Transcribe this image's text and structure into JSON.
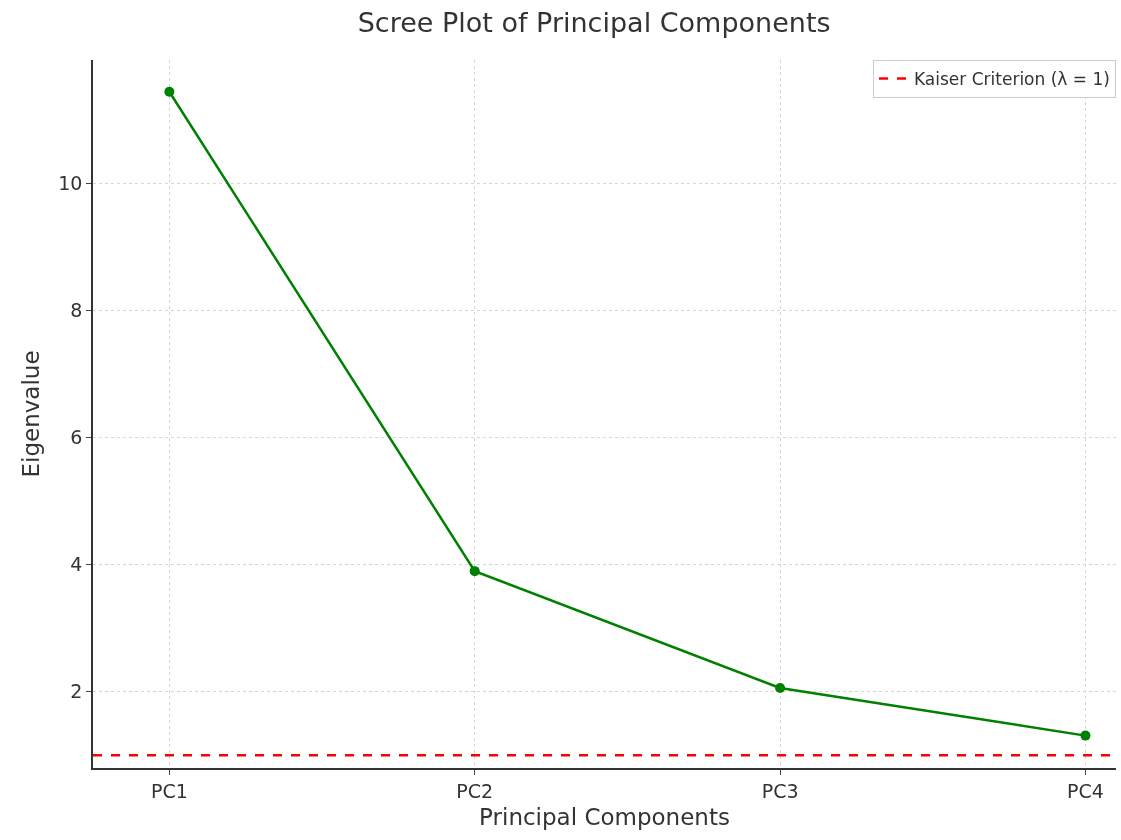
{
  "chart_data": {
    "type": "line",
    "title": "Scree Plot of Principal Components",
    "xlabel": "Principal Components",
    "ylabel": "Eigenvalue",
    "categories": [
      "PC1",
      "PC2",
      "PC3",
      "PC4"
    ],
    "series": [
      {
        "color": "#008000",
        "values": [
          11.45,
          3.9,
          2.06,
          1.31
        ]
      }
    ],
    "ylim": [
      0.8,
      11.95
    ],
    "yticks": [
      2,
      4,
      6,
      8,
      10
    ],
    "ref_lines": [
      {
        "axis": "y",
        "value": 1,
        "label": "Kaiser Criterion (λ = 1)",
        "color": "#ff0000",
        "line_style": "dashed"
      }
    ],
    "grid": true,
    "legend": "top right",
    "marker": "circle",
    "line_style": "solid"
  }
}
